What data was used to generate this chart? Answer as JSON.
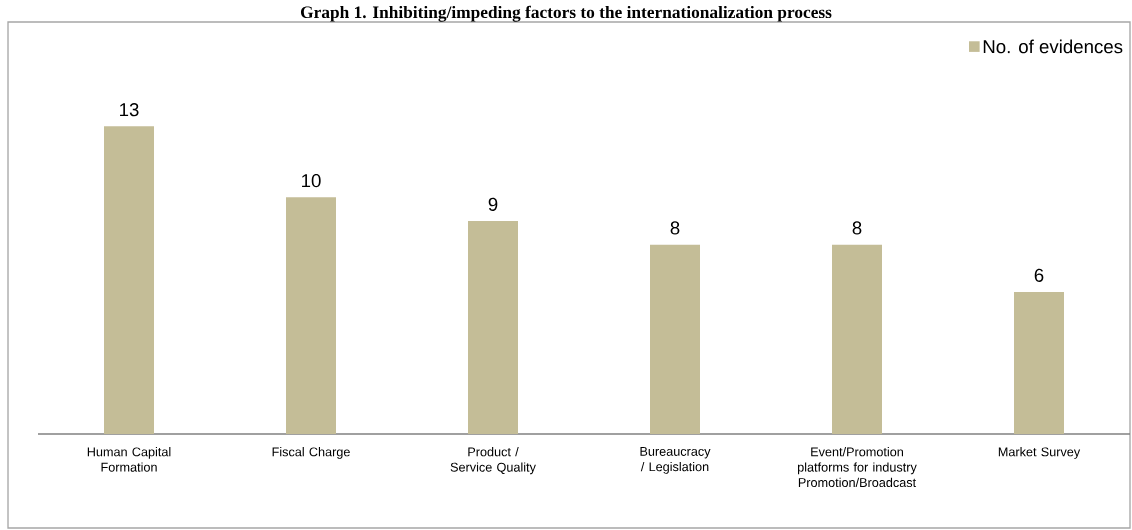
{
  "chart_data": {
    "type": "bar",
    "title": "Graph 1. Inhibiting/impeding factors to the internationalization process",
    "categories": [
      "Human Capital Formation",
      "Fiscal Charge",
      "Product / Service Quality",
      "Bureaucracy / Legislation",
      "Event/Promotion platforms for industry Promotion/Broadcast",
      "Market Survey"
    ],
    "series": [
      {
        "name": "No. of evidences",
        "color": "#c4bd97",
        "values": [
          13,
          10,
          9,
          8,
          8,
          6
        ]
      }
    ],
    "data_labels": true,
    "legend": "top right",
    "grid": false
  }
}
